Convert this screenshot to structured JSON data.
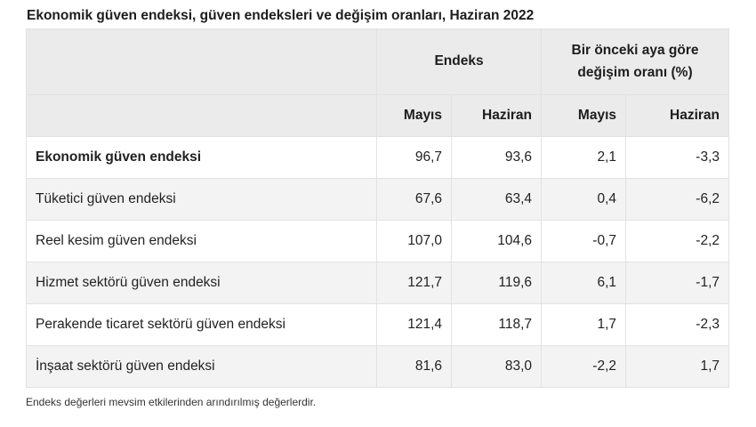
{
  "title": "Ekonomik güven endeksi, güven endeksleri ve değişim oranları, Haziran 2022",
  "table": {
    "group_headers": [
      "Endeks",
      "Bir önceki aya göre değişim oranı (%)"
    ],
    "sub_headers": [
      "Mayıs",
      "Haziran",
      "Mayıs",
      "Haziran"
    ],
    "rows": [
      {
        "label": "Ekonomik güven endeksi",
        "values": [
          "96,7",
          "93,6",
          "2,1",
          "-3,3"
        ],
        "bold": true
      },
      {
        "label": "Tüketici güven endeksi",
        "values": [
          "67,6",
          "63,4",
          "0,4",
          "-6,2"
        ]
      },
      {
        "label": "Reel kesim güven endeksi",
        "values": [
          "107,0",
          "104,6",
          "-0,7",
          "-2,2"
        ]
      },
      {
        "label": "Hizmet sektörü güven endeksi",
        "values": [
          "121,7",
          "119,6",
          "6,1",
          "-1,7"
        ]
      },
      {
        "label": "Perakende ticaret sektörü güven endeksi",
        "values": [
          "121,4",
          "118,7",
          "1,7",
          "-2,3"
        ]
      },
      {
        "label": "İnşaat sektörü güven endeksi",
        "values": [
          "81,6",
          "83,0",
          "-2,2",
          "1,7"
        ]
      }
    ]
  },
  "note": "Endeks değerleri mevsim etkilerinden arındırılmış değerlerdir."
}
